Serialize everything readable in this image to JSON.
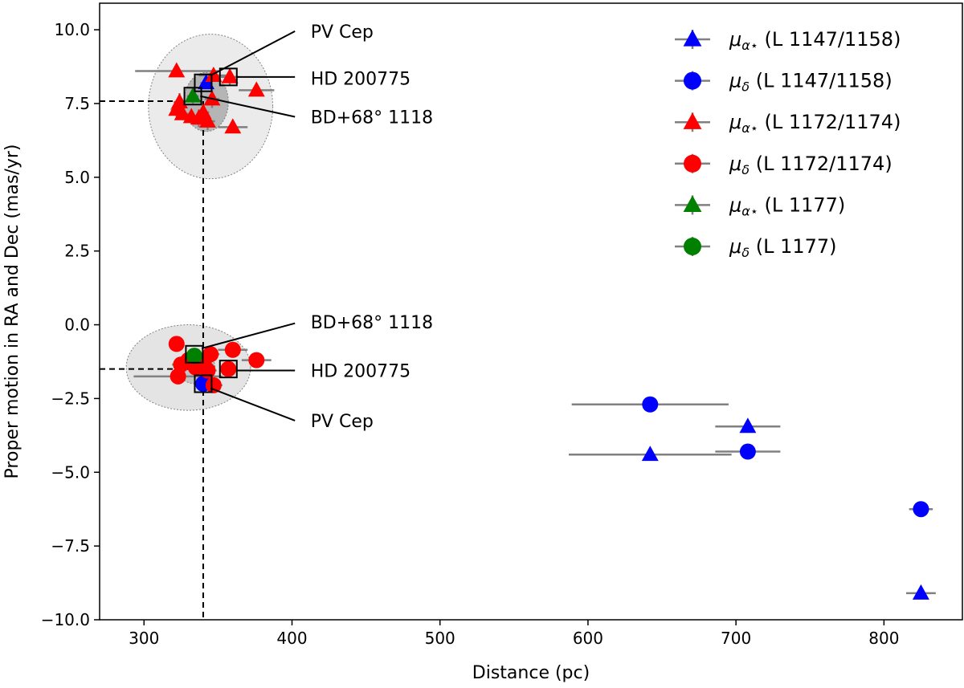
{
  "chart_data": {
    "type": "scatter",
    "xlabel": "Distance (pc)",
    "ylabel": "Proper motion in RA and Dec (mas/yr)",
    "xlim": [
      270,
      853
    ],
    "ylim": [
      -10.0,
      10.9
    ],
    "xticks": [
      300,
      400,
      500,
      600,
      700,
      800
    ],
    "yticks": [
      -10.0,
      -7.5,
      -5.0,
      -2.5,
      0.0,
      2.5,
      5.0,
      7.5,
      10.0
    ],
    "xtick_labels": [
      "300",
      "400",
      "500",
      "600",
      "700",
      "800"
    ],
    "ytick_labels": [
      "−10.0",
      "−7.5",
      "−5.0",
      "−2.5",
      "0.0",
      "2.5",
      "5.0",
      "7.5",
      "10.0"
    ],
    "grid": false,
    "legend_position": "top-right",
    "colors": {
      "blue": "#0000ff",
      "red": "#ff0000",
      "green": "#008000",
      "errorbar": "#808080"
    },
    "legend": [
      {
        "symbol": "μ",
        "sub": "α⋆",
        "group": "(L 1147/1158)",
        "marker": "triangle",
        "color": "#0000ff"
      },
      {
        "symbol": "μ",
        "sub": "δ",
        "group": "(L 1147/1158)",
        "marker": "circle",
        "color": "#0000ff"
      },
      {
        "symbol": "μ",
        "sub": "α⋆",
        "group": "(L 1172/1174)",
        "marker": "triangle",
        "color": "#ff0000"
      },
      {
        "symbol": "μ",
        "sub": "δ",
        "group": "(L 1172/1174)",
        "marker": "circle",
        "color": "#ff0000"
      },
      {
        "symbol": "μ",
        "sub": "α⋆",
        "group": "(L 1177)",
        "marker": "triangle",
        "color": "#008000"
      },
      {
        "symbol": "μ",
        "sub": "δ",
        "group": "(L 1177)",
        "marker": "circle",
        "color": "#008000"
      }
    ],
    "reference_lines": {
      "x_vertical": 340,
      "y_top": 7.58,
      "y_bottom": -1.5
    },
    "ellipses": [
      {
        "cx": 345,
        "cy": 7.4,
        "rx": 42,
        "ry": 2.45,
        "fill": "#ebebeb"
      },
      {
        "cx": 342,
        "cy": 7.55,
        "rx": 15,
        "ry": 1.0,
        "fill": "#b5b5b5"
      },
      {
        "cx": 330,
        "cy": -1.45,
        "rx": 42,
        "ry": 1.45,
        "fill": "#e4e4e4"
      },
      {
        "cx": 335,
        "cy": -1.45,
        "rx": 13,
        "ry": 0.55,
        "fill": "#c4c4c4"
      }
    ],
    "series": [
      {
        "name": "μα⋆ (L 1147/1158)",
        "color": "#0000ff",
        "marker": "triangle",
        "points": [
          {
            "x": 342,
            "y": 8.2,
            "xerr": 4,
            "yerr": 0.1
          },
          {
            "x": 642,
            "y": -4.4,
            "xerr": 55,
            "yerr": 0.1
          },
          {
            "x": 708,
            "y": -3.45,
            "xerr": 22,
            "yerr": 0.1
          },
          {
            "x": 825,
            "y": -9.1,
            "xerr": 10,
            "yerr": 0.1
          }
        ]
      },
      {
        "name": "μδ (L 1147/1158)",
        "color": "#0000ff",
        "marker": "circle",
        "points": [
          {
            "x": 340,
            "y": -2.0,
            "xerr": 4,
            "yerr": 0.1
          },
          {
            "x": 642,
            "y": -2.7,
            "xerr": 53,
            "yerr": 0.1
          },
          {
            "x": 708,
            "y": -4.3,
            "xerr": 22,
            "yerr": 0.1
          },
          {
            "x": 825,
            "y": -6.25,
            "xerr": 8,
            "yerr": 0.1
          }
        ]
      },
      {
        "name": "μα⋆ (L 1172/1174)",
        "color": "#ff0000",
        "marker": "triangle",
        "points": [
          {
            "x": 322,
            "y": 8.6,
            "xerr": 28,
            "yerr": 0.2
          },
          {
            "x": 324,
            "y": 7.55,
            "xerr": 4,
            "yerr": 0.3
          },
          {
            "x": 322,
            "y": 7.3,
            "xerr": 4,
            "yerr": 0.25
          },
          {
            "x": 326,
            "y": 7.15,
            "xerr": 4,
            "yerr": 0.2
          },
          {
            "x": 332,
            "y": 7.05,
            "xerr": 5,
            "yerr": 0.2
          },
          {
            "x": 337,
            "y": 7.0,
            "xerr": 5,
            "yerr": 0.3
          },
          {
            "x": 340,
            "y": 7.2,
            "xerr": 4,
            "yerr": 0.15
          },
          {
            "x": 343,
            "y": 6.9,
            "xerr": 5,
            "yerr": 0.3
          },
          {
            "x": 346,
            "y": 7.65,
            "xerr": 5,
            "yerr": 0.3
          },
          {
            "x": 347,
            "y": 8.45,
            "xerr": 10,
            "yerr": 0.1
          },
          {
            "x": 358,
            "y": 8.4,
            "xerr": 6,
            "yerr": 0.3
          },
          {
            "x": 360,
            "y": 6.7,
            "xerr": 10,
            "yerr": 0.2
          },
          {
            "x": 376,
            "y": 7.95,
            "xerr": 12,
            "yerr": 0.1
          }
        ]
      },
      {
        "name": "μδ (L 1172/1174)",
        "color": "#ff0000",
        "marker": "circle",
        "points": [
          {
            "x": 322,
            "y": -0.65,
            "xerr": 4,
            "yerr": 0.1
          },
          {
            "x": 323,
            "y": -1.75,
            "xerr": 30,
            "yerr": 0.1
          },
          {
            "x": 325,
            "y": -1.35,
            "xerr": 6,
            "yerr": 0.1
          },
          {
            "x": 330,
            "y": -1.2,
            "xerr": 6,
            "yerr": 0.1
          },
          {
            "x": 335,
            "y": -1.45,
            "xerr": 6,
            "yerr": 0.1
          },
          {
            "x": 340,
            "y": -1.3,
            "xerr": 6,
            "yerr": 0.1
          },
          {
            "x": 343,
            "y": -1.55,
            "xerr": 6,
            "yerr": 0.1
          },
          {
            "x": 345,
            "y": -1.0,
            "xerr": 6,
            "yerr": 0.1
          },
          {
            "x": 347,
            "y": -2.05,
            "xerr": 6,
            "yerr": 0.1
          },
          {
            "x": 357,
            "y": -1.5,
            "xerr": 6,
            "yerr": 0.1
          },
          {
            "x": 360,
            "y": -0.85,
            "xerr": 10,
            "yerr": 0.1
          },
          {
            "x": 376,
            "y": -1.2,
            "xerr": 10,
            "yerr": 0.1
          }
        ]
      },
      {
        "name": "μα⋆ (L 1177)",
        "color": "#008000",
        "marker": "triangle",
        "points": [
          {
            "x": 333,
            "y": 7.75,
            "xerr": 4,
            "yerr": 0.25
          }
        ]
      },
      {
        "name": "μδ (L 1177)",
        "color": "#008000",
        "marker": "circle",
        "points": [
          {
            "x": 334,
            "y": -1.05,
            "xerr": 4,
            "yerr": 0.25
          }
        ]
      }
    ],
    "highlight_boxes": [
      {
        "x": 340,
        "y": 8.2
      },
      {
        "x": 357,
        "y": 8.4
      },
      {
        "x": 333,
        "y": 7.75
      },
      {
        "x": 334,
        "y": -1.0
      },
      {
        "x": 357,
        "y": -1.5
      },
      {
        "x": 340,
        "y": -2.0
      }
    ],
    "annotations": [
      {
        "text": "PV Cep",
        "tx": 405,
        "ty": 9.95,
        "lines": [
          {
            "x1": 345,
            "y1": 8.45,
            "x2": 402,
            "y2": 9.95
          }
        ]
      },
      {
        "text": "HD 200775",
        "tx": 405,
        "ty": 8.35,
        "lines": [
          {
            "x1": 363,
            "y1": 8.4,
            "x2": 402,
            "y2": 8.4
          }
        ]
      },
      {
        "text": "BD+68° 1118",
        "tx": 405,
        "ty": 7.05,
        "lines": [
          {
            "x1": 338,
            "y1": 7.75,
            "x2": 402,
            "y2": 7.05
          }
        ]
      },
      {
        "text": "BD+68° 1118",
        "tx": 405,
        "ty": 0.1,
        "lines": [
          {
            "x1": 339,
            "y1": -0.8,
            "x2": 402,
            "y2": 0.05
          }
        ]
      },
      {
        "text": "HD 200775",
        "tx": 405,
        "ty": -1.55,
        "lines": [
          {
            "x1": 363,
            "y1": -1.55,
            "x2": 402,
            "y2": -1.55
          }
        ]
      },
      {
        "text": "PV Cep",
        "tx": 405,
        "ty": -3.25,
        "lines": [
          {
            "x1": 345,
            "y1": -2.15,
            "x2": 402,
            "y2": -3.25
          }
        ]
      }
    ]
  }
}
